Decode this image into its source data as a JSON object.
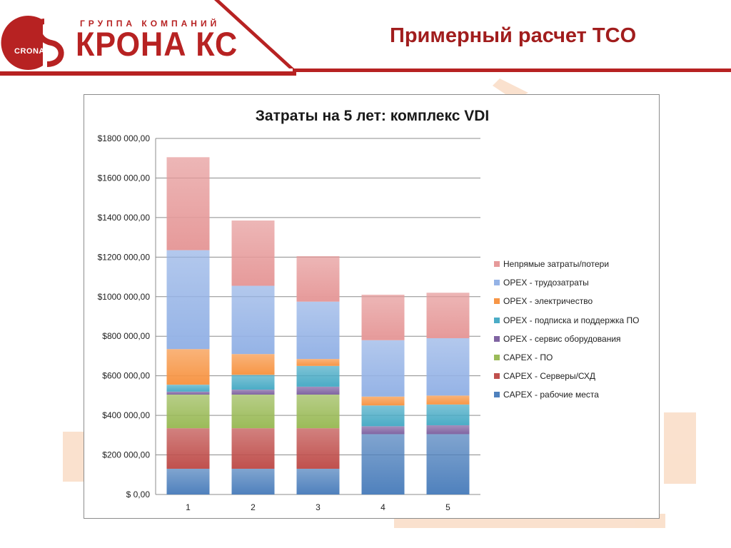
{
  "header": {
    "logo_small": "CRONA",
    "logo_group": "ГРУППА КОМПАНИЙ",
    "logo_name": "КРОНА КС",
    "title": "Примерный расчет TCO"
  },
  "colors": {
    "brand_red": "#b72222",
    "title_red": "#a11d1d",
    "deco_orange": "#f6c9a5"
  },
  "chart_data": {
    "type": "bar",
    "stacked": true,
    "title": "Затраты на 5 лет: комплекс VDI",
    "categories": [
      "1",
      "2",
      "3",
      "4",
      "5"
    ],
    "ylim": [
      0,
      1800000
    ],
    "yticks": [
      0,
      200000,
      400000,
      600000,
      800000,
      1000000,
      1200000,
      1400000,
      1600000,
      1800000
    ],
    "ytick_labels": [
      "$ 0,00",
      "$200 000,00",
      "$400 000,00",
      "$600 000,00",
      "$800 000,00",
      "$1000 000,00",
      "$1200 000,00",
      "$1400 000,00",
      "$1600 000,00",
      "$1800 000,00"
    ],
    "grid": true,
    "legend_position": "right",
    "series": [
      {
        "name": "CAPEX - рабочие места",
        "color": "#4f81bd",
        "values": [
          130000,
          130000,
          130000,
          305000,
          305000
        ]
      },
      {
        "name": "CAPEX - Серверы/СХД",
        "color": "#c0504d",
        "values": [
          205000,
          205000,
          205000,
          0,
          0
        ]
      },
      {
        "name": "CAPEX - ПО",
        "color": "#9bbb59",
        "values": [
          170000,
          170000,
          170000,
          0,
          0
        ]
      },
      {
        "name": "OPEX - сервис оборудования",
        "color": "#8064a2",
        "values": [
          15000,
          25000,
          40000,
          40000,
          45000
        ]
      },
      {
        "name": "OPEX - подписка и поддержка ПО",
        "color": "#4bacc6",
        "values": [
          35000,
          75000,
          105000,
          105000,
          105000
        ]
      },
      {
        "name": "OPEX - электричество",
        "color": "#f79646",
        "values": [
          180000,
          105000,
          35000,
          45000,
          45000
        ]
      },
      {
        "name": "OPEX - трудозатраты",
        "color": "#95b3e6",
        "values": [
          500000,
          345000,
          290000,
          285000,
          290000
        ]
      },
      {
        "name": "Непрямые затраты/потери",
        "color": "#e69a9a",
        "values": [
          470000,
          330000,
          230000,
          230000,
          230000
        ]
      }
    ]
  }
}
